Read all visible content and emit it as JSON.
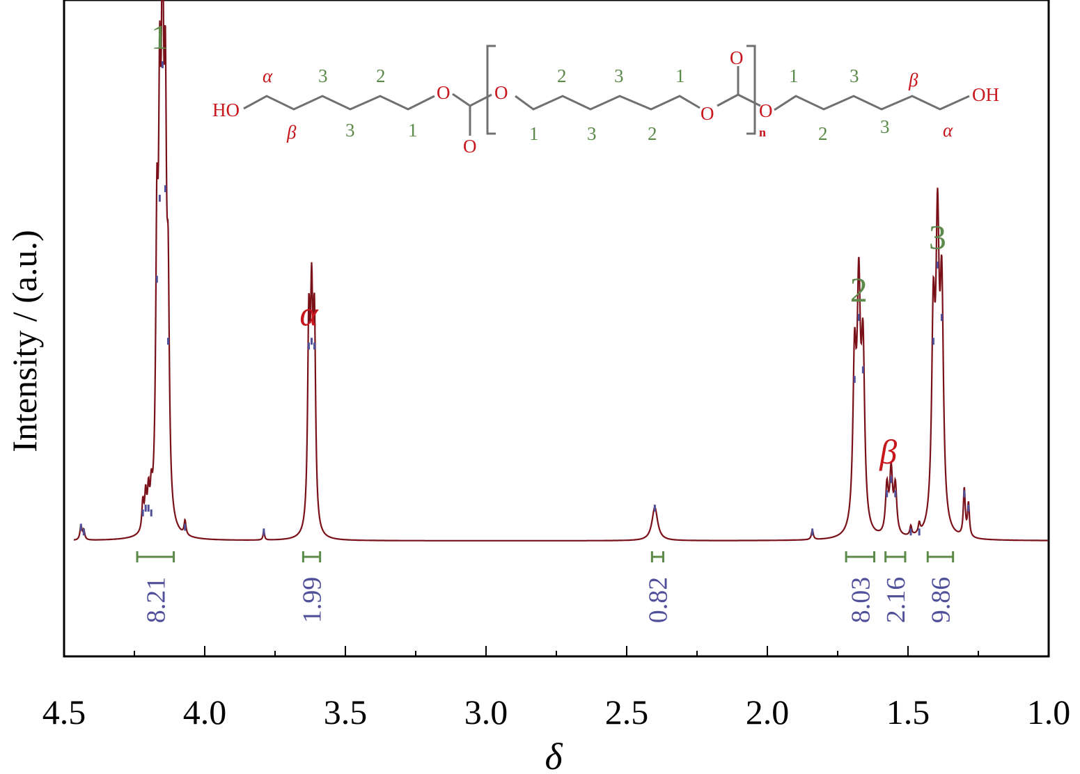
{
  "chart_data": {
    "type": "line",
    "xlabel": "δ",
    "ylabel": "Intensity / (a.u.)",
    "xlim": [
      4.5,
      1.0
    ],
    "x_reversed": true,
    "x_ticks": [
      "4.5",
      "4.0",
      "3.5",
      "3.0",
      "2.5",
      "2.0",
      "1.5",
      "1.0"
    ],
    "y_ticks": false,
    "grid": false,
    "series": [
      {
        "color": "#7a1018",
        "peaks": [
          {
            "x": 4.44,
            "h": 0.03,
            "w": 0.004
          },
          {
            "x": 4.43,
            "h": 0.02,
            "w": 0.004
          },
          {
            "x": 4.22,
            "h": 0.06,
            "w": 0.004
          },
          {
            "x": 4.21,
            "h": 0.07,
            "w": 0.004
          },
          {
            "x": 4.2,
            "h": 0.07,
            "w": 0.004
          },
          {
            "x": 4.19,
            "h": 0.06,
            "w": 0.004
          },
          {
            "x": 4.17,
            "h": 0.55,
            "w": 0.005
          },
          {
            "x": 4.16,
            "h": 0.72,
            "w": 0.005
          },
          {
            "x": 4.15,
            "h": 1.0,
            "w": 0.005
          },
          {
            "x": 4.14,
            "h": 0.74,
            "w": 0.005
          },
          {
            "x": 4.13,
            "h": 0.42,
            "w": 0.005
          },
          {
            "x": 4.07,
            "h": 0.03,
            "w": 0.004
          },
          {
            "x": 3.79,
            "h": 0.02,
            "w": 0.003
          },
          {
            "x": 3.63,
            "h": 0.41,
            "w": 0.005
          },
          {
            "x": 3.62,
            "h": 0.42,
            "w": 0.005
          },
          {
            "x": 3.61,
            "h": 0.41,
            "w": 0.005
          },
          {
            "x": 2.4,
            "h": 0.07,
            "w": 0.012
          },
          {
            "x": 1.84,
            "h": 0.02,
            "w": 0.004
          },
          {
            "x": 1.69,
            "h": 0.34,
            "w": 0.007
          },
          {
            "x": 1.675,
            "h": 0.47,
            "w": 0.007
          },
          {
            "x": 1.66,
            "h": 0.36,
            "w": 0.007
          },
          {
            "x": 1.575,
            "h": 0.1,
            "w": 0.006
          },
          {
            "x": 1.56,
            "h": 0.13,
            "w": 0.006
          },
          {
            "x": 1.545,
            "h": 0.1,
            "w": 0.006
          },
          {
            "x": 1.49,
            "h": 0.02,
            "w": 0.004
          },
          {
            "x": 1.46,
            "h": 0.02,
            "w": 0.004
          },
          {
            "x": 1.41,
            "h": 0.42,
            "w": 0.007
          },
          {
            "x": 1.395,
            "h": 0.58,
            "w": 0.007
          },
          {
            "x": 1.38,
            "h": 0.47,
            "w": 0.007
          },
          {
            "x": 1.3,
            "h": 0.1,
            "w": 0.004
          },
          {
            "x": 1.285,
            "h": 0.07,
            "w": 0.004
          }
        ]
      }
    ],
    "peak_labels": [
      {
        "text": "1",
        "x": 4.16,
        "color": "#5c8a4a"
      },
      {
        "text": "α",
        "x": 3.63,
        "color": "#c8161d",
        "italic": true
      },
      {
        "text": "2",
        "x": 1.675,
        "color": "#5c8a4a"
      },
      {
        "text": "β",
        "x": 1.57,
        "color": "#c8161d",
        "italic": true
      },
      {
        "text": "3",
        "x": 1.395,
        "color": "#5c8a4a"
      }
    ],
    "integrals": [
      {
        "value": "8.21",
        "x1": 4.24,
        "x2": 4.11
      },
      {
        "value": "1.99",
        "x1": 3.65,
        "x2": 3.59
      },
      {
        "value": "0.82",
        "x1": 2.41,
        "x2": 2.37
      },
      {
        "value": "8.03",
        "x1": 1.72,
        "x2": 1.62
      },
      {
        "value": "2.16",
        "x1": 1.58,
        "x2": 1.51
      },
      {
        "value": "9.86",
        "x1": 1.43,
        "x2": 1.34
      }
    ]
  },
  "structure": {
    "ho": "HO",
    "oh": "OH",
    "o": "O",
    "n": "n",
    "alpha": "α",
    "beta": "β",
    "numbers": {
      "one": "1",
      "two": "2",
      "three": "3"
    }
  },
  "colors": {
    "green": "#5c8a4a",
    "red": "#c8161d",
    "blue": "#50509a",
    "bond": "#707070",
    "line": "#7a1018"
  }
}
